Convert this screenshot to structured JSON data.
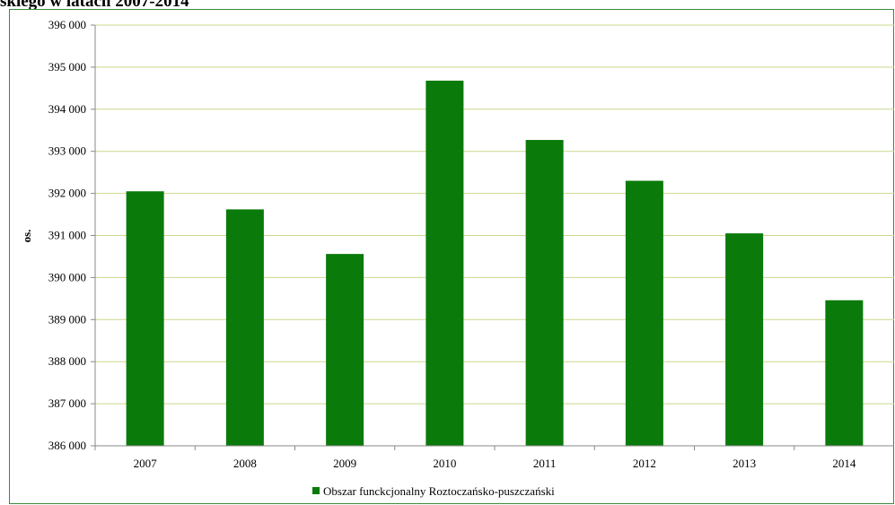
{
  "title": "skiego w latach 2007-2014",
  "chart_data": {
    "type": "bar",
    "categories": [
      "2007",
      "2008",
      "2009",
      "2010",
      "2011",
      "2012",
      "2013",
      "2014"
    ],
    "series": [
      {
        "name": "Obszar funckcjonalny Roztoczańsko-puszczański",
        "values": [
          392050,
          391620,
          390560,
          394680,
          393270,
          392300,
          391050,
          389460
        ],
        "color": "#0a7a0a"
      }
    ],
    "ylabel": "os.",
    "ylim": [
      386000,
      396000
    ],
    "yticks": [
      386000,
      387000,
      388000,
      389000,
      390000,
      391000,
      392000,
      393000,
      394000,
      395000,
      396000
    ],
    "ytick_labels": [
      "386 000",
      "387 000",
      "388 000",
      "389 000",
      "390 000",
      "391 000",
      "392 000",
      "393 000",
      "394 000",
      "395 000",
      "396 000"
    ],
    "grid": true,
    "grid_color": "#c9d98a",
    "legend_position": "bottom"
  }
}
